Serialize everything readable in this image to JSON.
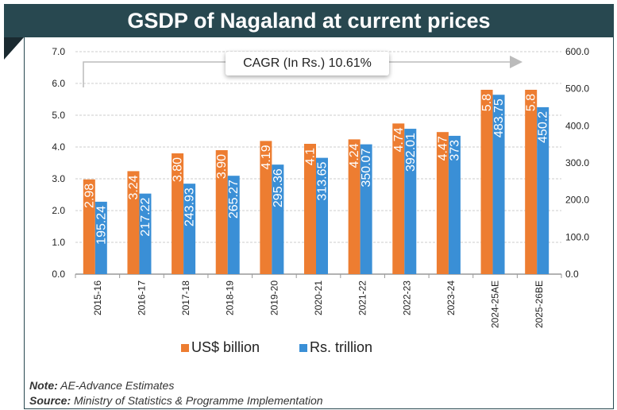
{
  "title": "GSDP of Nagaland at current prices",
  "note_label": "Note:",
  "note_text": " AE-Advance Estimates",
  "source_label": "Source:",
  "source_text": " Ministry of Statistics & Programme Implementation",
  "chart_data": {
    "type": "bar",
    "categories": [
      "2015-16",
      "2016-17",
      "2017-18",
      "2018-19",
      "2019-20",
      "2020-21",
      "2021-22",
      "2022-23",
      "2023-24",
      "2024-25AE",
      "2025-26BE"
    ],
    "series": [
      {
        "name": "US$ billion",
        "axis": "left",
        "color": "#ed7d31",
        "values": [
          2.98,
          3.24,
          3.8,
          3.9,
          4.19,
          4.1,
          4.24,
          4.74,
          4.47,
          5.8,
          5.8
        ],
        "labels": [
          "2.98",
          "3.24",
          "3.80",
          "3.90",
          "4.19",
          "4.1",
          "4.24",
          "4.74",
          "4.47",
          "5.8",
          "5.8"
        ]
      },
      {
        "name": "Rs. trillion",
        "axis": "right",
        "color": "#3a8fd6",
        "values": [
          195.24,
          217.22,
          243.93,
          265.27,
          295.36,
          313.65,
          350.07,
          392.01,
          373,
          483.75,
          450.2
        ],
        "labels": [
          "195.24",
          "217.22",
          "243.93",
          "265.27",
          "295.36",
          "313.65",
          "350.07",
          "392.01",
          "373",
          "483.75",
          "450.2"
        ]
      }
    ],
    "left_axis": {
      "range": [
        0,
        7
      ],
      "ticks": [
        "0.0",
        "1.0",
        "2.0",
        "3.0",
        "4.0",
        "5.0",
        "6.0",
        "7.0"
      ]
    },
    "right_axis": {
      "range": [
        0,
        600
      ],
      "ticks": [
        "0.0",
        "100.0",
        "200.0",
        "300.0",
        "400.0",
        "500.0",
        "600.0"
      ]
    },
    "grid": "horizontal dashed",
    "legend": "bottom",
    "annotation": "CAGR (In Rs.) 10.61%"
  }
}
